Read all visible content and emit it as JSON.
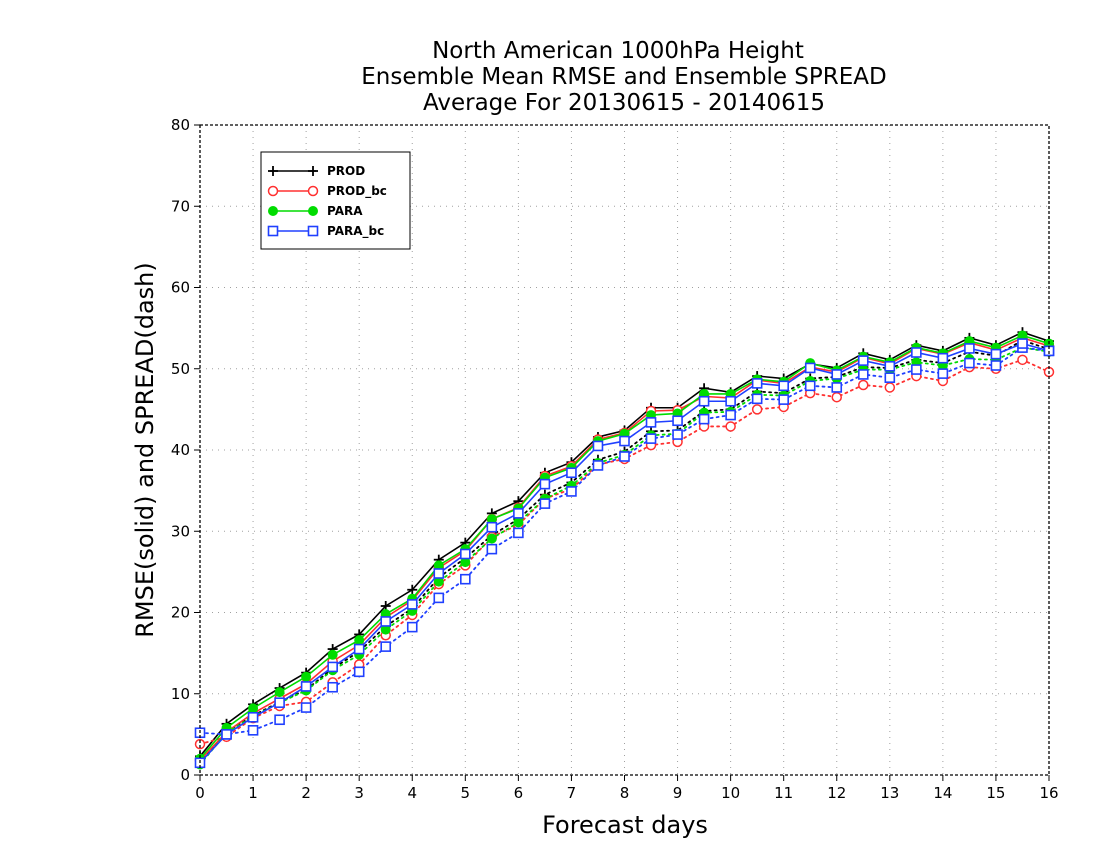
{
  "chart_data": {
    "type": "line",
    "title": [
      "North American 1000hPa Height",
      "Ensemble Mean RMSE and Ensemble SPREAD",
      "Average For 20130615 - 20140615"
    ],
    "xlabel": "Forecast days",
    "ylabel": "RMSE(solid) and SPREAD(dash)",
    "xlim": [
      0,
      16
    ],
    "ylim": [
      0,
      80
    ],
    "x_ticks": [
      0,
      1,
      2,
      3,
      4,
      5,
      6,
      7,
      8,
      9,
      10,
      11,
      12,
      13,
      14,
      15,
      16
    ],
    "y_ticks": [
      0,
      10,
      20,
      30,
      40,
      50,
      60,
      70,
      80
    ],
    "grid": true,
    "legend_position": "top-left",
    "x": [
      0,
      0.5,
      1,
      1.5,
      2,
      2.5,
      3,
      3.5,
      4,
      4.5,
      5,
      5.5,
      6,
      6.5,
      7,
      7.5,
      8,
      8.5,
      9,
      9.5,
      10,
      10.5,
      11,
      11.5,
      12,
      12.5,
      13,
      13.5,
      14,
      14.5,
      15,
      15.5,
      16
    ],
    "series": [
      {
        "name": "PROD",
        "color": "#000000",
        "marker": "plus",
        "rmse": [
          2.3,
          6.3,
          8.7,
          10.7,
          12.6,
          15.5,
          17.3,
          20.8,
          22.8,
          26.5,
          28.6,
          32.2,
          33.7,
          37.2,
          38.5,
          41.6,
          42.4,
          45.2,
          45.2,
          47.6,
          47.1,
          49.1,
          48.8,
          50.6,
          50.1,
          51.9,
          51.1,
          52.9,
          52.2,
          53.8,
          52.9,
          54.5,
          53.4
        ],
        "spread": [
          1.5,
          5.3,
          7.3,
          9.0,
          10.5,
          13.1,
          15.2,
          18.3,
          20.5,
          24.3,
          26.7,
          29.5,
          31.5,
          34.5,
          36.0,
          38.8,
          39.8,
          42.3,
          42.4,
          44.8,
          45.0,
          47.2,
          47.0,
          48.8,
          49.0,
          50.2,
          50.1,
          51.1,
          50.7,
          52.1,
          51.6,
          53.5,
          52.4
        ]
      },
      {
        "name": "PROD_bc",
        "color": "#ff3030",
        "marker": "open-circle",
        "rmse": [
          1.8,
          5.3,
          7.6,
          9.4,
          11.2,
          14.0,
          16.0,
          19.4,
          21.5,
          25.5,
          27.6,
          31.5,
          32.9,
          36.8,
          38.0,
          41.3,
          42.1,
          44.8,
          44.9,
          46.6,
          46.4,
          48.6,
          48.2,
          50.2,
          49.6,
          51.4,
          50.6,
          52.5,
          51.8,
          53.2,
          52.3,
          53.8,
          52.8
        ],
        "spread": [
          3.8,
          4.7,
          7.0,
          8.5,
          9.0,
          11.4,
          13.6,
          17.2,
          19.7,
          23.5,
          25.8,
          29.3,
          30.8,
          34.0,
          35.2,
          38.2,
          38.9,
          40.6,
          41.0,
          42.9,
          42.9,
          45.0,
          45.3,
          47.0,
          46.5,
          48.0,
          47.7,
          49.1,
          48.5,
          50.2,
          50.0,
          51.1,
          49.6
        ]
      },
      {
        "name": "PARA",
        "color": "#00dc00",
        "marker": "filled-circle",
        "rmse": [
          2.0,
          5.8,
          8.2,
          10.2,
          12.1,
          14.8,
          16.6,
          19.8,
          21.7,
          25.8,
          27.8,
          31.5,
          32.8,
          36.6,
          37.8,
          41.1,
          42.0,
          44.3,
          44.5,
          46.9,
          46.9,
          48.7,
          48.4,
          50.7,
          49.8,
          51.5,
          50.8,
          52.6,
          51.9,
          53.4,
          52.6,
          54.1,
          53.1
        ],
        "spread": [
          1.3,
          5.2,
          7.2,
          8.9,
          10.4,
          12.9,
          14.8,
          17.9,
          20.2,
          23.8,
          26.2,
          29.1,
          31.1,
          34.0,
          35.6,
          38.4,
          39.4,
          41.8,
          42.0,
          44.6,
          44.7,
          46.8,
          46.7,
          48.5,
          48.8,
          49.9,
          49.9,
          50.8,
          50.4,
          51.2,
          51.1,
          52.6,
          52.1
        ]
      },
      {
        "name": "PARA_bc",
        "color": "#2040ff",
        "marker": "open-square",
        "rmse": [
          1.5,
          5.0,
          7.1,
          8.9,
          10.9,
          13.3,
          15.5,
          18.9,
          21.0,
          24.8,
          27.2,
          30.5,
          32.2,
          35.8,
          37.2,
          40.5,
          41.1,
          43.4,
          43.6,
          46.0,
          46.0,
          48.2,
          47.9,
          50.1,
          49.3,
          51.0,
          50.3,
          52.0,
          51.3,
          52.5,
          51.8,
          53.1,
          52.2
        ],
        "spread": [
          5.2,
          5.0,
          5.5,
          6.8,
          8.3,
          10.8,
          12.7,
          15.8,
          18.2,
          21.8,
          24.1,
          27.8,
          29.8,
          33.4,
          34.9,
          38.1,
          39.2,
          41.4,
          41.9,
          43.8,
          44.3,
          46.3,
          46.2,
          47.9,
          47.7,
          49.3,
          48.9,
          49.9,
          49.4,
          50.7,
          50.4,
          52.6,
          52.2
        ]
      }
    ]
  }
}
